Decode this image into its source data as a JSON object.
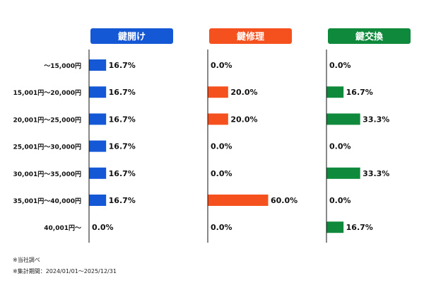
{
  "chart_data": {
    "type": "bar",
    "orientation": "horizontal",
    "unit": "%",
    "categories": [
      "〜15,000円",
      "15,001円〜20,000円",
      "20,001円〜25,000円",
      "25,001円〜30,000円",
      "30,001円〜35,000円",
      "35,001円〜40,000円",
      "40,001円〜"
    ],
    "series": [
      {
        "name": "鍵開け",
        "color": "#1558d6",
        "values": [
          16.7,
          16.7,
          16.7,
          16.7,
          16.7,
          16.7,
          0.0
        ]
      },
      {
        "name": "鍵修理",
        "color": "#f4511e",
        "values": [
          0.0,
          20.0,
          20.0,
          0.0,
          0.0,
          60.0,
          0.0
        ]
      },
      {
        "name": "鍵交換",
        "color": "#0f8a3c",
        "values": [
          0.0,
          16.7,
          33.3,
          0.0,
          33.3,
          0.0,
          16.7
        ]
      }
    ],
    "xlim": [
      0,
      100
    ]
  },
  "notes": {
    "line1": "※当社調べ",
    "line2": "※集計期間：2024/01/01〜2025/12/31"
  }
}
